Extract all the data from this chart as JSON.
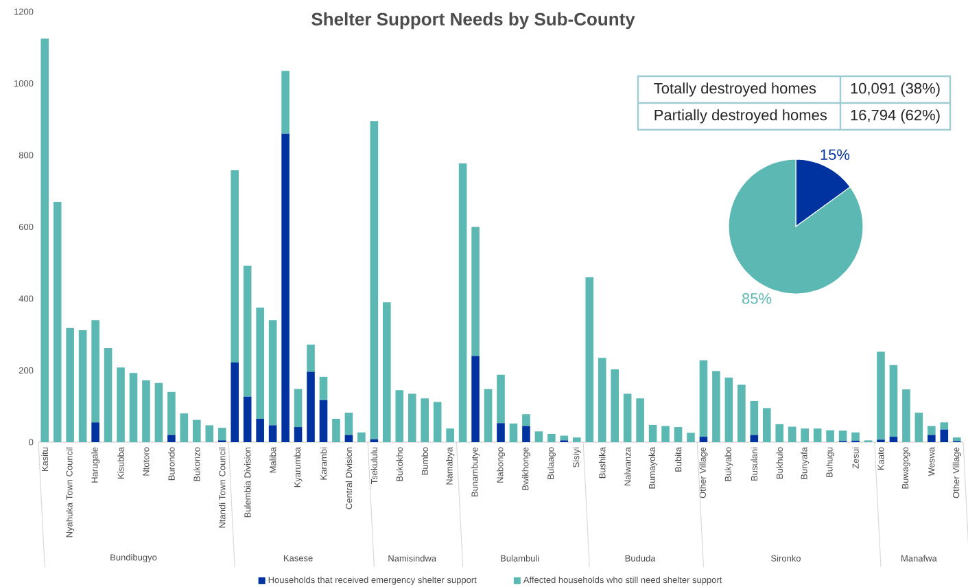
{
  "chart_data": [
    {
      "type": "bar",
      "title": "Shelter Support Needs by Sub-County",
      "stacked": true,
      "legend": "bottom",
      "categories": [
        "Kasitu",
        null,
        "Nyahuka Town Council",
        null,
        "Harugale",
        null,
        "Kisubba",
        null,
        "Ntotoro",
        null,
        "Burondo",
        null,
        "Bukonzo",
        null,
        "Ntandi Town Council",
        null,
        "Bulembia Division",
        null,
        "Maliba",
        null,
        "Kyarumba",
        null,
        "Karambi",
        null,
        "Central Division",
        null,
        "Tsekululu",
        null,
        "Bukokho",
        null,
        "Bumbo",
        null,
        "Namabya",
        null,
        "Bunambutye",
        null,
        "Nabongo",
        null,
        "Bwikhonge",
        null,
        "Bulaago",
        null,
        "Sisiyi",
        null,
        "Bushika",
        null,
        "Nalwanza",
        null,
        "Bumayoka",
        null,
        "Bubita",
        null,
        "Other Village",
        null,
        "Bukyabo",
        null,
        "Busulani",
        null,
        "Bukhulo",
        null,
        "Bunyafa",
        null,
        "Buhugu",
        null,
        "Zesui",
        null,
        "Kaato",
        null,
        "Buwagogo",
        null,
        "Weswa",
        null,
        "Other Village"
      ],
      "series": [
        {
          "name": "Households that received emergency shelter support",
          "color": "#0033a0",
          "values": [
            0,
            0,
            0,
            0,
            55,
            0,
            0,
            0,
            0,
            0,
            20,
            0,
            0,
            0,
            5,
            222,
            127,
            65,
            47,
            860,
            42,
            196,
            117,
            0,
            20,
            0,
            8,
            0,
            0,
            0,
            0,
            0,
            0,
            0,
            240,
            0,
            53,
            0,
            45,
            0,
            0,
            5,
            0,
            0,
            0,
            0,
            0,
            0,
            0,
            0,
            0,
            0,
            15,
            0,
            0,
            0,
            20,
            0,
            0,
            0,
            0,
            0,
            0,
            3,
            4,
            0,
            7,
            15,
            0,
            0,
            20,
            35,
            3
          ]
        },
        {
          "name": "Affected households who still need shelter support",
          "color": "#5bb8b2",
          "values": [
            1125,
            670,
            318,
            312,
            285,
            262,
            208,
            193,
            172,
            165,
            120,
            80,
            62,
            47,
            35,
            536,
            365,
            310,
            293,
            175,
            106,
            76,
            65,
            65,
            62,
            27,
            887,
            390,
            145,
            135,
            122,
            112,
            38,
            777,
            360,
            148,
            135,
            52,
            33,
            30,
            23,
            13,
            13,
            460,
            235,
            203,
            135,
            122,
            48,
            45,
            42,
            26,
            213,
            198,
            180,
            160,
            95,
            95,
            50,
            43,
            38,
            38,
            33,
            29,
            23,
            5,
            245,
            200,
            147,
            82,
            25,
            20,
            10
          ]
        }
      ],
      "ylim": [
        0,
        1200
      ],
      "yticks": [
        0,
        200,
        400,
        600,
        800,
        1000,
        1200
      ],
      "annotations": [
        "Bundibugyo",
        "Kasese",
        "Namisindwa",
        "Bulambuli",
        "Bududa",
        "Sironko",
        "Manafwa"
      ]
    },
    {
      "type": "pie",
      "categories": [
        null,
        null
      ],
      "values": [
        15,
        85
      ],
      "colors": [
        "#0033a0",
        "#5bb8b2"
      ],
      "value_labels": [
        "15%",
        "85%"
      ],
      "annotations": [
        "Totally destroyed homes",
        "10,091 (38%)",
        "Partially destroyed homes",
        "16,794 (62%)"
      ]
    }
  ]
}
